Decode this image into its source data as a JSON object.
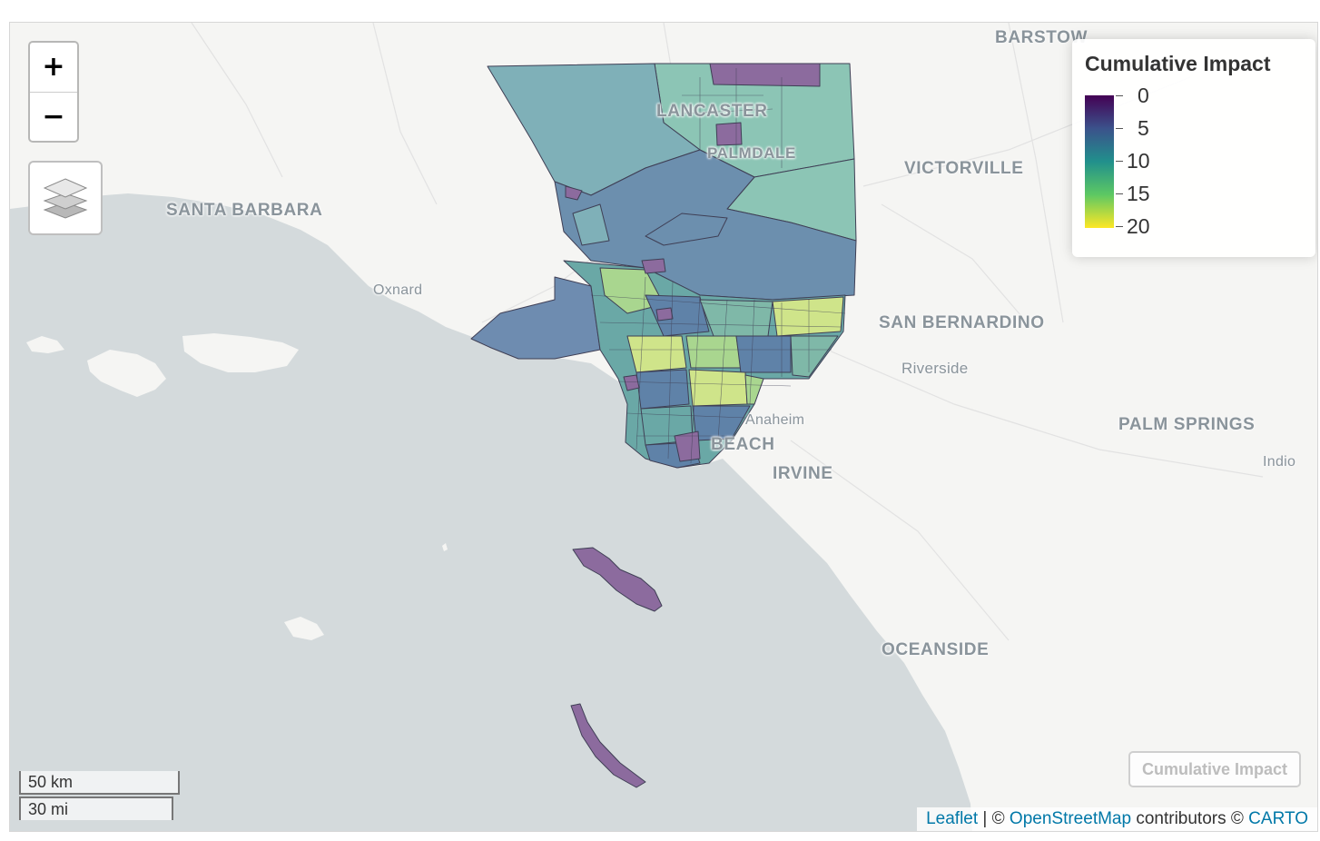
{
  "map": {
    "cities": {
      "barstow": "BARSTOW",
      "lancaster": "LANCASTER",
      "palmdale": "PALMDALE",
      "victorville": "VICTORVILLE",
      "santa_barbara": "SANTA BARBARA",
      "oxnard": "Oxnard",
      "san_bernardino": "SAN BERNARDINO",
      "riverside": "Riverside",
      "anaheim": "Anaheim",
      "long_beach": "BEACH",
      "irvine": "IRVINE",
      "palm_springs": "PALM SPRINGS",
      "indio": "Indio",
      "oceanside": "OCEANSIDE"
    },
    "region_fill_colors": {
      "north_high_desert": "#8cc5b5",
      "antelope_valley": "#7fb0b8",
      "mountains": "#6c8fae",
      "malibu": "#6e8cb0",
      "urban_mix": [
        "#5f82a8",
        "#7fb8a8",
        "#a9d68f",
        "#cfe48a",
        "#6aa8a6",
        "#8a6aa0"
      ],
      "islands": "#8c6b9e",
      "outline": "#3f3f55"
    }
  },
  "controls": {
    "zoom_in": "+",
    "zoom_out": "−",
    "layers_icon": "layers-icon",
    "overlay_toggle": "Cumulative Impact"
  },
  "legend": {
    "title": "Cumulative Impact",
    "labels": [
      "0",
      "5",
      "10",
      "15",
      "20"
    ],
    "colors": [
      "#440154",
      "#3b528b",
      "#21908c",
      "#5dc863",
      "#fde725"
    ]
  },
  "scale": {
    "km": "50 km",
    "mi": "30 mi"
  },
  "attribution": {
    "leaflet": "Leaflet",
    "sep": " | © ",
    "osm": "OpenStreetMap",
    "contributors": " contributors © ",
    "carto": "CARTO"
  }
}
